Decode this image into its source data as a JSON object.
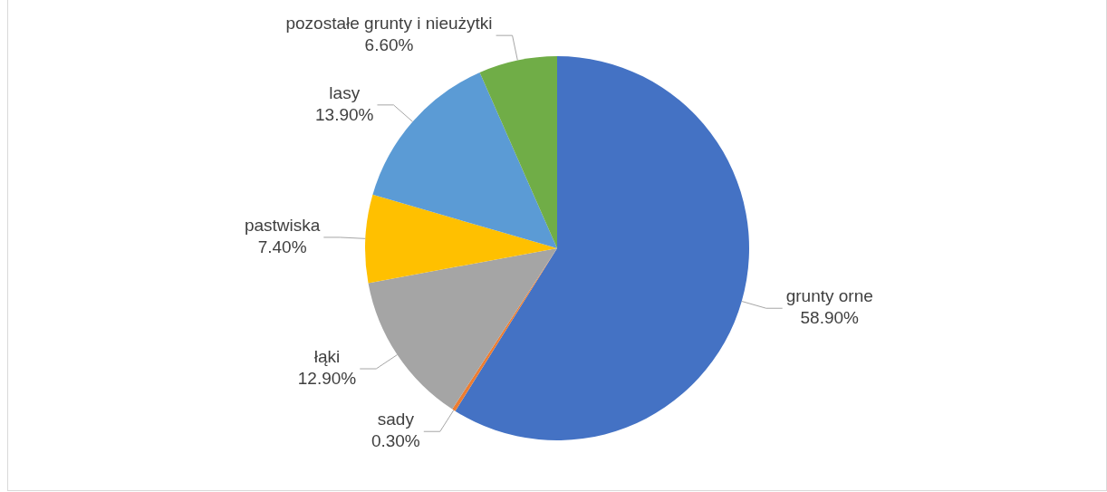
{
  "chart_data": {
    "type": "pie",
    "categories": [
      "grunty orne",
      "sady",
      "łąki",
      "pastwiska",
      "lasy",
      "pozostałe grunty i nieużytki"
    ],
    "values": [
      58.9,
      0.3,
      12.9,
      7.4,
      13.9,
      6.6
    ],
    "value_labels": [
      "58.90%",
      "0.30%",
      "12.90%",
      "7.40%",
      "13.90%",
      "6.60%"
    ],
    "colors": [
      "#4472c4",
      "#ed7d31",
      "#a5a5a5",
      "#ffc000",
      "#5b9bd5",
      "#70ad47"
    ],
    "legend": false
  }
}
